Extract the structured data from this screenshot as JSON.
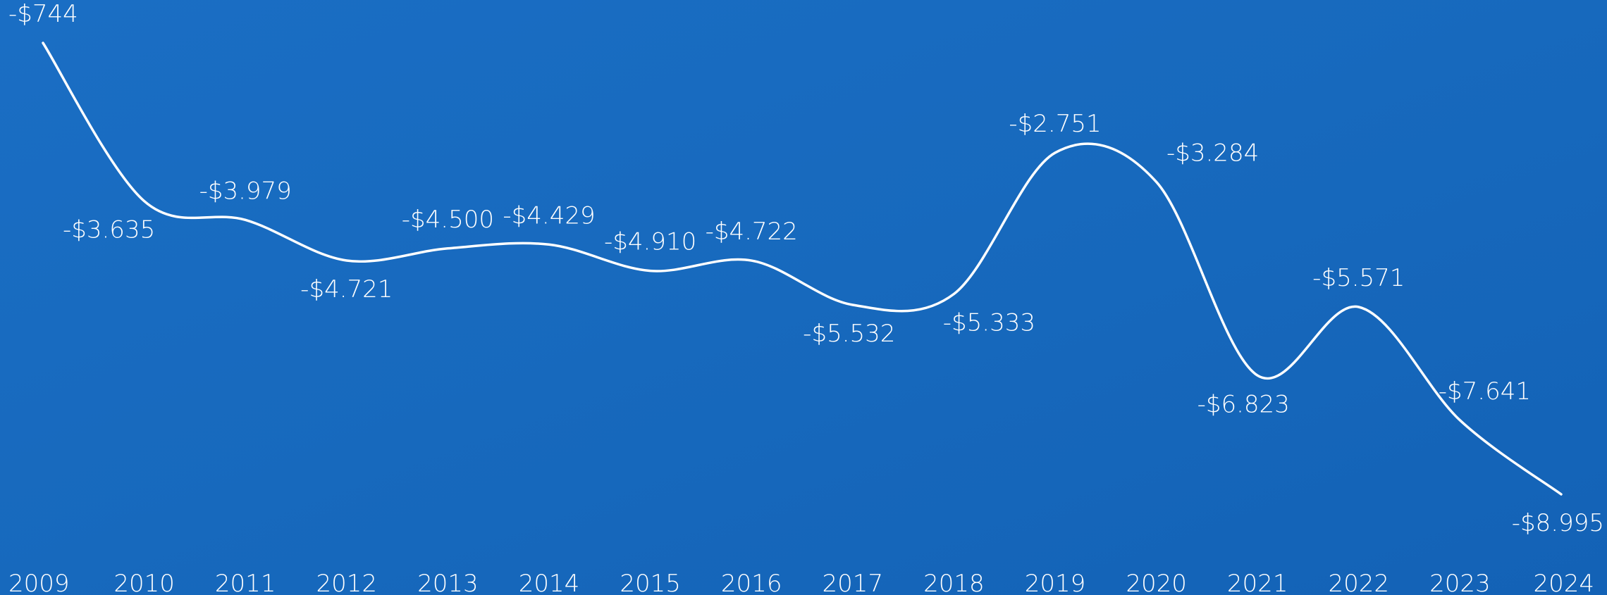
{
  "chart_data": {
    "type": "line",
    "categories": [
      "2009",
      "2010",
      "2011",
      "2012",
      "2013",
      "2014",
      "2015",
      "2016",
      "2017",
      "2018",
      "2019",
      "2020",
      "2021",
      "2022",
      "2023",
      "2024"
    ],
    "values": [
      -744,
      -3635,
      -3979,
      -4721,
      -4500,
      -4429,
      -4910,
      -4722,
      -5532,
      -5333,
      -2751,
      -3284,
      -6823,
      -5571,
      -7641,
      -8995
    ],
    "value_labels": [
      "-$744",
      "-$3.635",
      "-$3.979",
      "-$4.721",
      "-$4.500",
      "-$4.429",
      "-$4.910",
      "-$4.722",
      "-$5.532",
      "-$5.333",
      "-$2.751",
      "-$3.284",
      "-$6.823",
      "-$5.571",
      "-$7.641",
      "-$8.995"
    ],
    "color": "#ffffff"
  }
}
